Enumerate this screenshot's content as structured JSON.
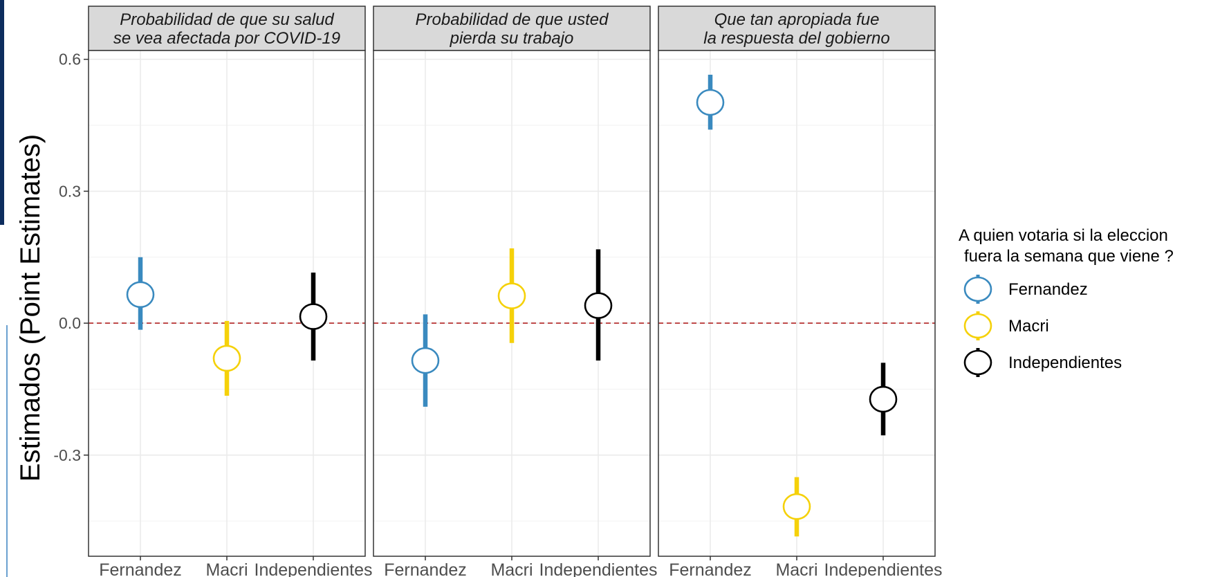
{
  "chart_data": {
    "type": "scatter",
    "ylabel": "Estimados (Point Estimates)",
    "ylim": [
      -0.53,
      0.62
    ],
    "y_ticks": [
      0.6,
      0.3,
      0.0,
      -0.3
    ],
    "y_tick_labels": [
      "0.6",
      "0.3",
      "0.0",
      "-0.3"
    ],
    "categories": [
      "Fernandez",
      "Macri",
      "Independientes"
    ],
    "reference_line": 0.0,
    "reference_line_color": "#b22222",
    "legend": {
      "title_line1": "A quien votaria si la eleccion",
      "title_line2": "fuera la semana que viene ?",
      "placement": "right",
      "entries": [
        "Fernandez",
        "Macri",
        "Independientes"
      ]
    },
    "colors": {
      "Fernandez": "#3a8abf",
      "Macri": "#f5d10a",
      "Independientes": "#000000"
    },
    "panels": [
      {
        "title_line1": "Probabilidad de que su salud",
        "title_line2": "se vea afectada por COVID-19",
        "points": [
          {
            "group": "Fernandez",
            "estimate": 0.065,
            "low": -0.015,
            "high": 0.15
          },
          {
            "group": "Macri",
            "estimate": -0.08,
            "low": -0.165,
            "high": 0.005
          },
          {
            "group": "Independientes",
            "estimate": 0.015,
            "low": -0.085,
            "high": 0.115
          }
        ]
      },
      {
        "title_line1": "Probabilidad de que usted",
        "title_line2": "pierda su trabajo",
        "points": [
          {
            "group": "Fernandez",
            "estimate": -0.085,
            "low": -0.19,
            "high": 0.02
          },
          {
            "group": "Macri",
            "estimate": 0.062,
            "low": -0.045,
            "high": 0.17
          },
          {
            "group": "Independientes",
            "estimate": 0.04,
            "low": -0.085,
            "high": 0.168
          }
        ]
      },
      {
        "title_line1": "Que tan apropiada fue",
        "title_line2": "la respuesta del gobierno",
        "points": [
          {
            "group": "Fernandez",
            "estimate": 0.502,
            "low": 0.44,
            "high": 0.565
          },
          {
            "group": "Macri",
            "estimate": -0.417,
            "low": -0.485,
            "high": -0.35
          },
          {
            "group": "Independientes",
            "estimate": -0.173,
            "low": -0.255,
            "high": -0.09
          }
        ]
      }
    ],
    "x_tick_labels": [
      "Fernandez",
      "Macri",
      "Independientes"
    ]
  }
}
